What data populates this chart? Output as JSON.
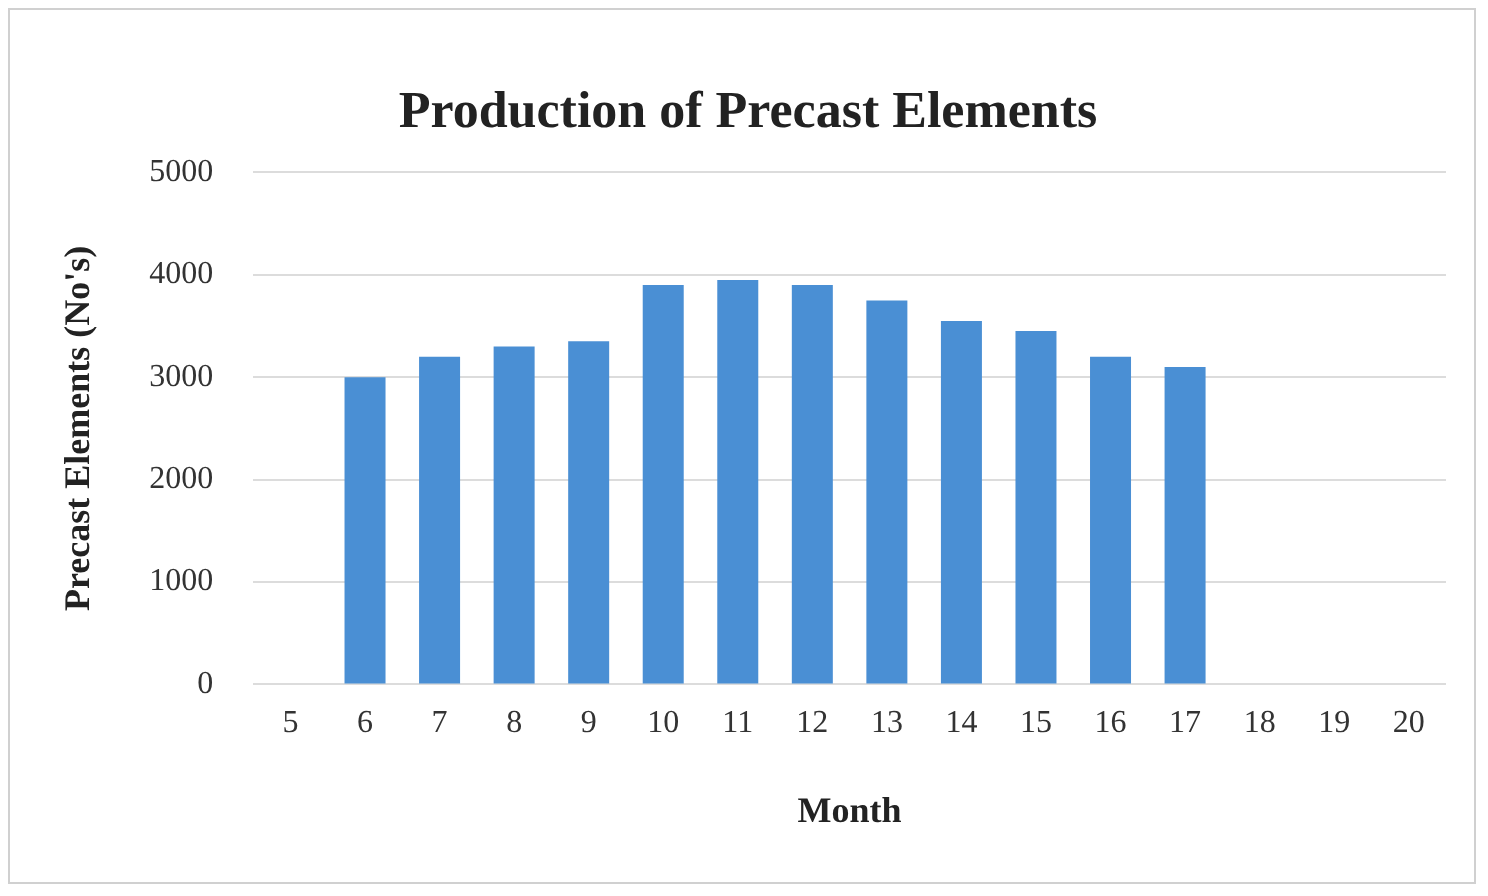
{
  "chart_data": {
    "type": "bar",
    "title": "Production of Precast Elements",
    "xlabel": "Month",
    "ylabel": "Precast Elements (No's)",
    "categories": [
      "5",
      "6",
      "7",
      "8",
      "9",
      "10",
      "11",
      "12",
      "13",
      "14",
      "15",
      "16",
      "17",
      "18",
      "19",
      "20"
    ],
    "values": [
      null,
      3000,
      3200,
      3300,
      3350,
      3900,
      3950,
      3900,
      3750,
      3550,
      3450,
      3200,
      3100,
      null,
      null,
      null
    ],
    "color": "#4a8fd4",
    "ylim": [
      0,
      5000
    ],
    "yticks": [
      0,
      1000,
      2000,
      3000,
      4000,
      5000
    ],
    "grid": "y"
  }
}
